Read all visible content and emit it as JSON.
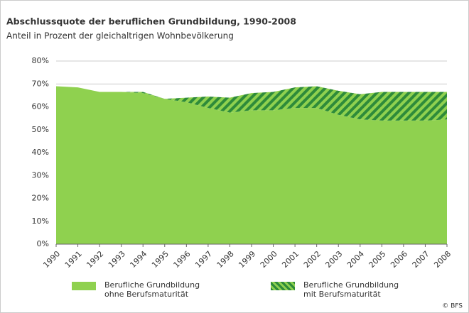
{
  "chart_data": {
    "type": "stacked_area",
    "title": "Abschlussquote der beruflichen Grundbildung, 1990-2008",
    "subtitle": "Anteil in Prozent der gleichaltrigen Wohnbevölkerung",
    "source": "© BFS",
    "categories": [
      "1990",
      "1991",
      "1992",
      "1993",
      "1994",
      "1995",
      "1996",
      "1997",
      "1998",
      "1999",
      "2000",
      "2001",
      "2002",
      "2003",
      "2004",
      "2005",
      "2006",
      "2007",
      "2008"
    ],
    "series": [
      {
        "name": "Berufliche Grundbildung ohne Berufsmaturität",
        "color": "#8fd14f",
        "values": [
          69,
          68.5,
          66.5,
          66.5,
          66,
          63.5,
          62,
          59.5,
          57.5,
          58.5,
          58.5,
          59.5,
          59.5,
          56.5,
          54.5,
          54,
          54,
          54,
          54.5
        ]
      },
      {
        "name": "Berufliche Grundbildung mit Berufsmaturität",
        "color": "#2e8b3a",
        "values": [
          0,
          0,
          0,
          0,
          0.5,
          0,
          2,
          5,
          6.5,
          7.5,
          8,
          9,
          9.5,
          10.5,
          11,
          12.5,
          12.5,
          12.5,
          12
        ]
      }
    ],
    "ylim": [
      0,
      80
    ],
    "yticks": [
      {
        "value": 0,
        "label": "0%"
      },
      {
        "value": 10,
        "label": "10%"
      },
      {
        "value": 20,
        "label": "20%"
      },
      {
        "value": 30,
        "label": "30%"
      },
      {
        "value": 40,
        "label": "40%"
      },
      {
        "value": 50,
        "label": "50%"
      },
      {
        "value": 60,
        "label": "60%"
      },
      {
        "value": 70,
        "label": "70%"
      },
      {
        "value": 80,
        "label": "80%"
      }
    ],
    "grid": true
  }
}
